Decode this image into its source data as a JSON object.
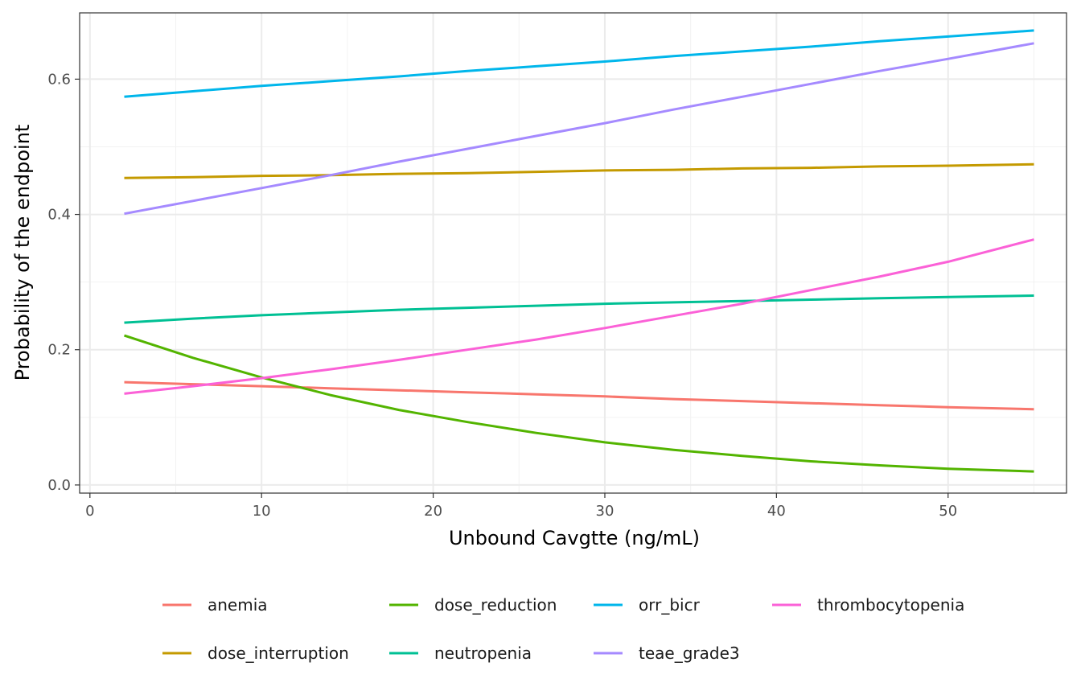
{
  "chart_data": {
    "type": "line",
    "title": "",
    "xlabel": "Unbound Cavgtte (ng/mL)",
    "ylabel": "Probability of the endpoint",
    "xlim": [
      -0.6,
      56.9
    ],
    "ylim": [
      -0.012,
      0.698
    ],
    "x_ticks": [
      0,
      10,
      20,
      30,
      40,
      50
    ],
    "x_tick_labels": [
      "0",
      "10",
      "20",
      "30",
      "40",
      "50"
    ],
    "y_ticks": [
      0.0,
      0.2,
      0.4,
      0.6
    ],
    "y_tick_labels": [
      "0.0",
      "0.2",
      "0.4",
      "0.6"
    ],
    "grid": true,
    "legend_position": "bottom",
    "x": [
      2,
      6,
      10,
      14,
      18,
      22,
      26,
      30,
      34,
      38,
      42,
      46,
      50,
      55
    ],
    "series": [
      {
        "name": "anemia",
        "color": "#F8766D",
        "values": [
          0.152,
          0.149,
          0.146,
          0.143,
          0.14,
          0.137,
          0.134,
          0.131,
          0.127,
          0.124,
          0.121,
          0.118,
          0.115,
          0.112
        ]
      },
      {
        "name": "dose_interruption",
        "color": "#C49A00",
        "values": [
          0.454,
          0.455,
          0.457,
          0.458,
          0.46,
          0.461,
          0.463,
          0.465,
          0.466,
          0.468,
          0.469,
          0.471,
          0.472,
          0.474
        ]
      },
      {
        "name": "dose_reduction",
        "color": "#53B400",
        "values": [
          0.221,
          0.188,
          0.159,
          0.133,
          0.111,
          0.093,
          0.077,
          0.063,
          0.052,
          0.043,
          0.035,
          0.029,
          0.024,
          0.02
        ]
      },
      {
        "name": "neutropenia",
        "color": "#00C094",
        "values": [
          0.24,
          0.246,
          0.251,
          0.255,
          0.259,
          0.262,
          0.265,
          0.268,
          0.27,
          0.272,
          0.274,
          0.276,
          0.278,
          0.28
        ]
      },
      {
        "name": "orr_bicr",
        "color": "#00B6EB",
        "values": [
          0.574,
          0.582,
          0.59,
          0.597,
          0.604,
          0.612,
          0.619,
          0.626,
          0.634,
          0.641,
          0.648,
          0.656,
          0.663,
          0.672
        ]
      },
      {
        "name": "teae_grade3",
        "color": "#A58AFF",
        "values": [
          0.401,
          0.42,
          0.439,
          0.458,
          0.478,
          0.497,
          0.516,
          0.535,
          0.555,
          0.574,
          0.593,
          0.612,
          0.63,
          0.653
        ]
      },
      {
        "name": "thrombocytopenia",
        "color": "#FB61D7",
        "values": [
          0.135,
          0.146,
          0.158,
          0.171,
          0.185,
          0.2,
          0.215,
          0.232,
          0.25,
          0.268,
          0.288,
          0.308,
          0.33,
          0.363
        ]
      }
    ]
  }
}
